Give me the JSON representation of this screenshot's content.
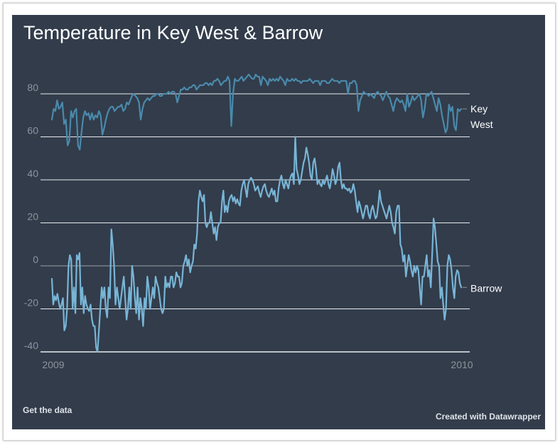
{
  "chart_data": {
    "type": "line",
    "title": "Temperature in Key West & Barrow",
    "xlabel": "",
    "ylabel": "",
    "x_ticks": [
      "2009",
      "2010"
    ],
    "y_ticks": [
      80,
      60,
      40,
      20,
      0,
      -20,
      -40
    ],
    "ylim": [
      -40,
      80
    ],
    "grid": true,
    "legend": "direct-labels-right",
    "series": [
      {
        "name": "Key West",
        "color": "#4a8aab",
        "label_lines": [
          "Key",
          "West"
        ],
        "values": [
          68,
          73,
          72,
          77,
          73,
          74,
          76,
          66,
          68,
          56,
          58,
          72,
          69,
          72,
          73,
          56,
          54,
          62,
          69,
          72,
          70,
          71,
          68,
          71,
          68,
          70,
          69,
          72,
          70,
          61,
          64,
          68,
          71,
          73,
          74,
          74,
          72,
          73,
          74,
          74,
          75,
          72,
          73,
          76,
          75,
          77,
          79,
          80,
          79,
          78,
          76,
          68,
          73,
          76,
          77,
          78,
          77,
          78,
          79,
          79,
          80,
          80,
          79,
          79,
          80,
          80,
          80,
          81,
          80,
          81,
          81,
          80,
          76,
          79,
          82,
          82,
          83,
          82,
          82,
          83,
          83,
          84,
          84,
          82,
          83,
          84,
          84,
          84,
          85,
          85,
          84,
          85,
          84,
          86,
          86,
          87,
          86,
          84,
          85,
          86,
          86,
          88,
          86,
          65,
          80,
          87,
          86,
          86,
          87,
          88,
          86,
          87,
          88,
          89,
          88,
          87,
          87,
          89,
          88,
          88,
          84,
          88,
          87,
          86,
          84,
          87,
          86,
          87,
          86,
          87,
          86,
          88,
          87,
          86,
          84,
          87,
          86,
          86,
          87,
          86,
          87,
          86,
          86,
          85,
          86,
          86,
          86,
          86,
          87,
          86,
          85,
          86,
          86,
          86,
          84,
          86,
          86,
          86,
          85,
          85,
          86,
          87,
          86,
          86,
          86,
          85,
          86,
          86,
          86,
          86,
          80,
          85,
          85,
          86,
          86,
          84,
          72,
          77,
          79,
          81,
          80,
          80,
          79,
          80,
          79,
          78,
          80,
          81,
          80,
          79,
          77,
          79,
          81,
          79,
          78,
          75,
          72,
          76,
          78,
          77,
          76,
          77,
          75,
          72,
          80,
          74,
          76,
          79,
          77,
          78,
          79,
          80,
          77,
          69,
          73,
          80,
          79,
          80,
          81,
          78,
          75,
          72,
          78,
          75,
          70,
          66,
          62,
          64,
          75,
          72,
          74,
          65,
          63,
          73,
          72,
          73
        ]
      },
      {
        "name": "Barrow",
        "color": "#78b5d6",
        "label_lines": [
          "Barrow"
        ],
        "values": [
          -6,
          -18,
          -14,
          -16,
          -13,
          -17,
          -20,
          -18,
          -15,
          -30,
          -28,
          -20,
          0,
          5,
          3,
          -20,
          -10,
          -22,
          5,
          3,
          6,
          -18,
          -10,
          -22,
          -14,
          -18,
          -20,
          -21,
          -18,
          -25,
          -28,
          -28,
          -38,
          -40,
          -30,
          -20,
          -10,
          -15,
          -10,
          -20,
          -24,
          -10,
          -15,
          17,
          10,
          0,
          -18,
          -10,
          -15,
          -20,
          -15,
          -10,
          -5,
          -15,
          -25,
          -20,
          -10,
          -20,
          0,
          -5,
          -15,
          -22,
          -10,
          -25,
          -15,
          -20,
          -28,
          -15,
          -20,
          -5,
          -10,
          -20,
          -15,
          -10,
          -15,
          -5,
          -8,
          -10,
          -15,
          -20,
          -22,
          -20,
          -5,
          -10,
          -8,
          -10,
          -5,
          -5,
          -10,
          -8,
          -3,
          -5,
          -5,
          -10,
          -8,
          0,
          2,
          5,
          0,
          3,
          -3,
          0,
          2,
          10,
          8,
          15,
          30,
          35,
          32,
          30,
          33,
          20,
          18,
          20,
          20,
          25,
          20,
          15,
          18,
          12,
          18,
          20,
          20,
          30,
          35,
          25,
          28,
          25,
          30,
          32,
          33,
          30,
          32,
          29,
          31,
          29,
          28,
          35,
          38,
          40,
          36,
          32,
          38,
          40,
          41,
          40,
          38,
          35,
          36,
          37,
          34,
          32,
          35,
          37,
          38,
          35,
          33,
          32,
          34,
          36,
          33,
          35,
          30,
          30,
          36,
          40,
          42,
          38,
          36,
          40,
          38,
          36,
          40,
          42,
          43,
          38,
          60,
          45,
          42,
          38,
          40,
          44,
          48,
          50,
          55,
          52,
          48,
          42,
          40,
          48,
          50,
          45,
          38,
          40,
          38,
          37,
          40,
          38,
          40,
          42,
          38,
          36,
          40,
          45,
          42,
          38,
          40,
          46,
          48,
          40,
          36,
          38,
          36,
          36,
          35,
          36,
          34,
          35,
          38,
          35,
          30,
          25,
          30,
          28,
          25,
          22,
          25,
          28,
          28,
          24,
          22,
          26,
          28,
          25,
          22,
          23,
          28,
          35,
          30,
          28,
          26,
          24,
          22,
          25,
          28,
          25,
          20,
          18,
          15,
          25,
          28,
          28,
          10,
          8,
          2,
          5,
          -5,
          0,
          5,
          2,
          -2,
          -5,
          0,
          -3,
          0,
          -2,
          -10,
          -18,
          -5,
          -5,
          0,
          5,
          -5,
          -2,
          -10,
          5,
          22,
          18,
          10,
          2,
          0,
          -15,
          -10,
          -18,
          -25,
          -20,
          0,
          5,
          3,
          -2,
          -10,
          -15,
          -5,
          -2,
          -3,
          -8,
          -10
        ]
      }
    ]
  },
  "footer": {
    "get_data": "Get the data",
    "credit": "Created with Datawrapper"
  }
}
